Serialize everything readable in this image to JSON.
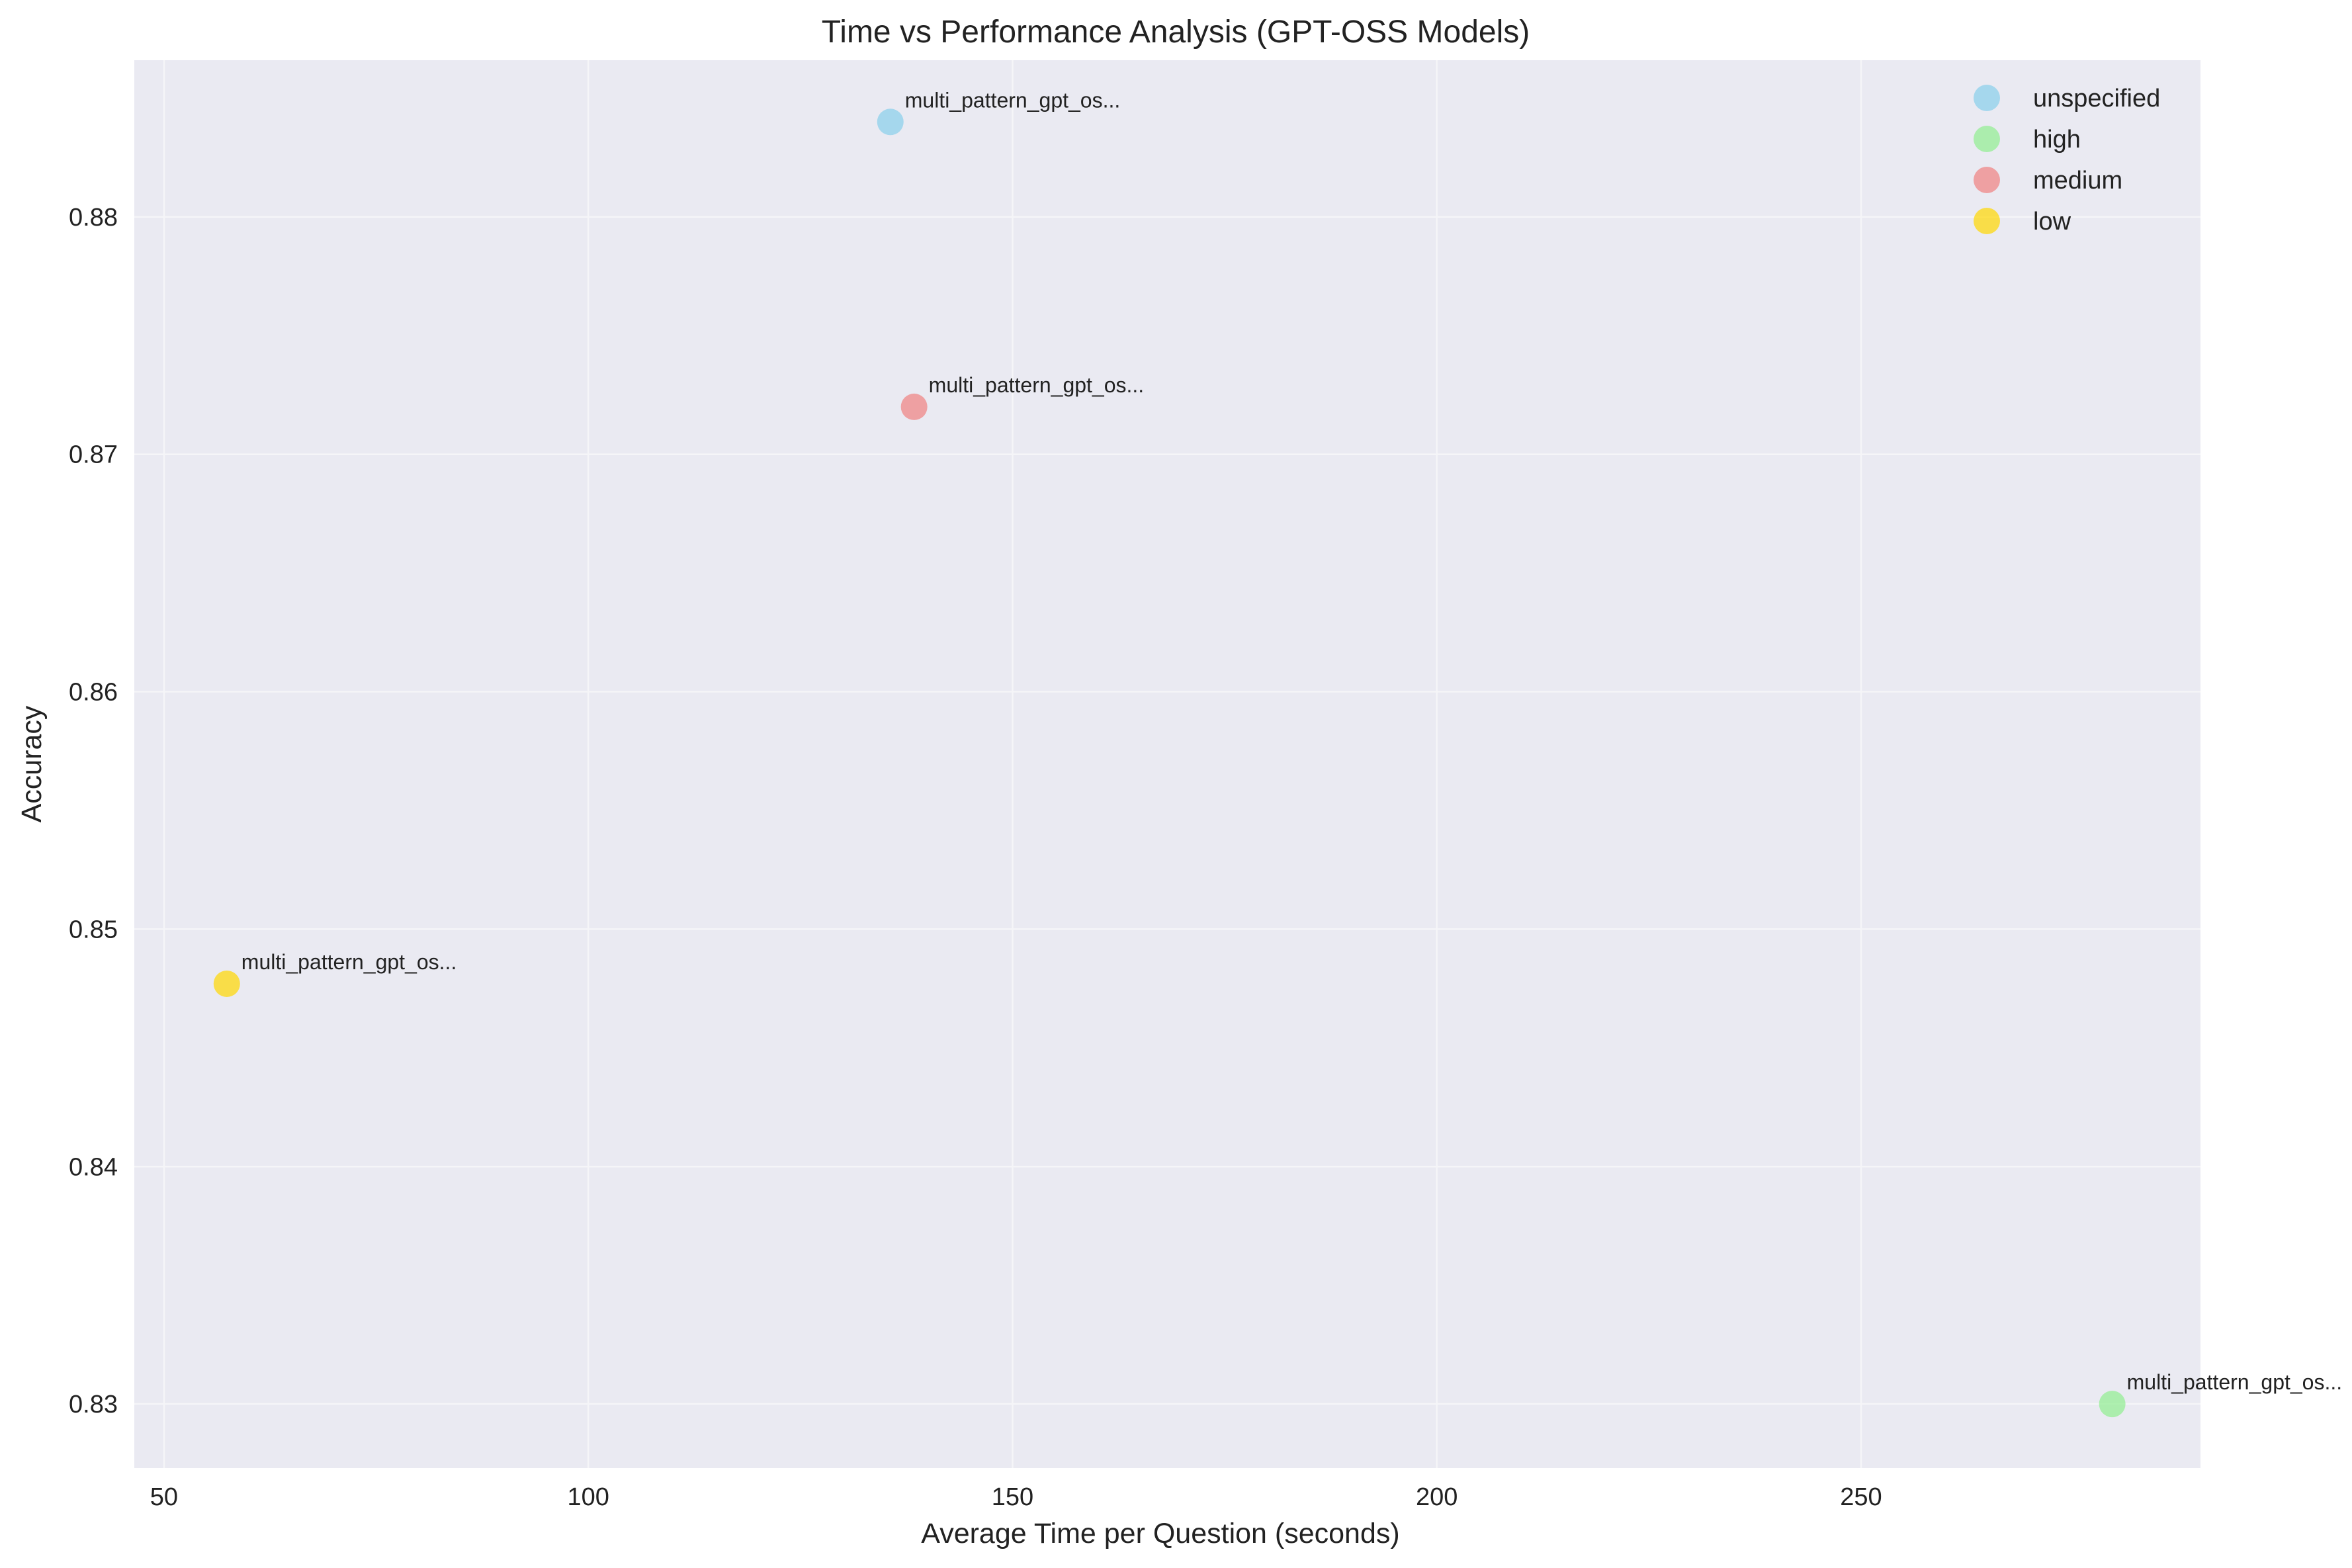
{
  "chart_data": {
    "type": "scatter",
    "title": "Time vs Performance Analysis (GPT-OSS Models)",
    "xlabel": "Average Time per Question (seconds)",
    "ylabel": "Accuracy",
    "xlim": [
      46.5,
      290
    ],
    "ylim": [
      0.8273,
      0.8866
    ],
    "xticks": [
      50,
      100,
      150,
      200,
      250
    ],
    "xtick_labels": [
      "50",
      "100",
      "150",
      "200",
      "250"
    ],
    "yticks": [
      0.83,
      0.84,
      0.85,
      0.86,
      0.87,
      0.88
    ],
    "ytick_labels": [
      "0.83",
      "0.84",
      "0.85",
      "0.86",
      "0.87",
      "0.88"
    ],
    "grid": true,
    "legend_position": "top-right",
    "series": [
      {
        "name": "unspecified",
        "color": "#87ceeb",
        "points": [
          {
            "x": 135.6,
            "y": 0.884,
            "label": "multi_pattern_gpt_os..."
          }
        ]
      },
      {
        "name": "high",
        "color": "#90ee90",
        "points": [
          {
            "x": 279.6,
            "y": 0.83,
            "label": "multi_pattern_gpt_os..."
          }
        ]
      },
      {
        "name": "medium",
        "color": "#f08080",
        "points": [
          {
            "x": 138.4,
            "y": 0.872,
            "label": "multi_pattern_gpt_os..."
          }
        ]
      },
      {
        "name": "low",
        "color": "#ffd700",
        "points": [
          {
            "x": 57.4,
            "y": 0.8477,
            "label": "multi_pattern_gpt_os..."
          }
        ]
      }
    ],
    "style": {
      "plot_background": "#eaeaf2",
      "grid_color": "#f5f5f8",
      "point_opacity": 0.7
    }
  }
}
